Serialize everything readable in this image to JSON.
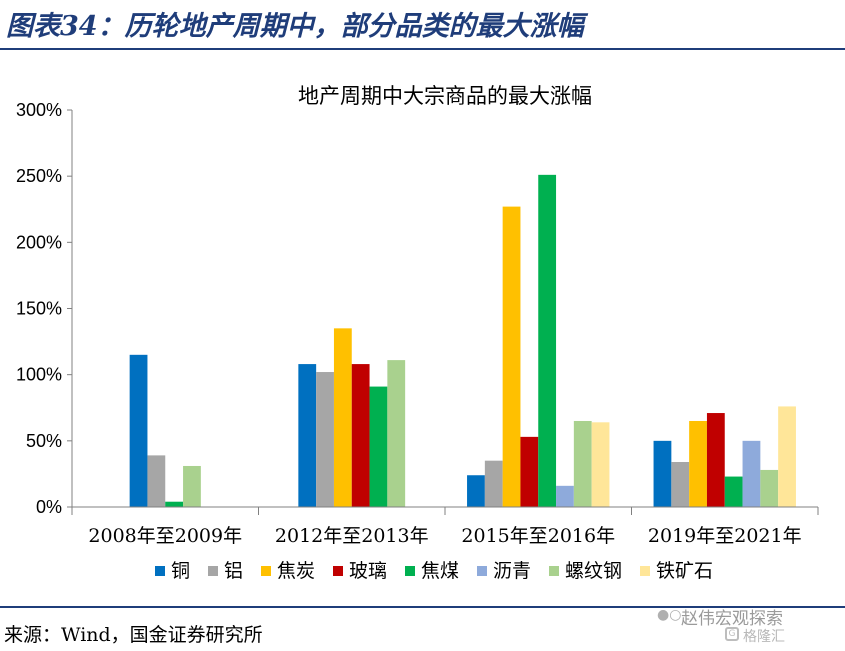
{
  "figure_title": "图表34：历轮地产周期中，部分品类的最大涨幅",
  "source": "来源：Wind，国金证券研究所",
  "watermark": {
    "icon": "wechat-icon",
    "text": "赵伟宏观探索",
    "logo_text": "格隆汇"
  },
  "chart_data": {
    "type": "bar",
    "title": "地产周期中大宗商品的最大涨幅",
    "xlabel": "",
    "ylabel": "",
    "categories": [
      "2008年至2009年",
      "2012年至2013年",
      "2015年至2016年",
      "2019年至2021年"
    ],
    "ylim": [
      0,
      300
    ],
    "yticks": [
      0,
      50,
      100,
      150,
      200,
      250,
      300
    ],
    "ytick_labels": [
      "0%",
      "50%",
      "100%",
      "150%",
      "200%",
      "250%",
      "300%"
    ],
    "legend_position": "bottom",
    "grid": false,
    "series": [
      {
        "name": "铜",
        "color": "#0070c0",
        "values": [
          115,
          108,
          24,
          50
        ]
      },
      {
        "name": "铝",
        "color": "#a6a6a6",
        "values": [
          39,
          102,
          35,
          34
        ]
      },
      {
        "name": "焦炭",
        "color": "#ffc000",
        "values": [
          null,
          135,
          227,
          65
        ]
      },
      {
        "name": "玻璃",
        "color": "#c00000",
        "values": [
          null,
          108,
          53,
          71
        ]
      },
      {
        "name": "焦煤",
        "color": "#00b050",
        "values": [
          4,
          91,
          251,
          23
        ]
      },
      {
        "name": "沥青",
        "color": "#8eaadb",
        "values": [
          null,
          null,
          16,
          50
        ]
      },
      {
        "name": "螺纹钢",
        "color": "#a9d18e",
        "values": [
          31,
          111,
          65,
          28
        ]
      },
      {
        "name": "铁矿石",
        "color": "#ffe699",
        "values": [
          null,
          null,
          64,
          76
        ]
      }
    ]
  }
}
